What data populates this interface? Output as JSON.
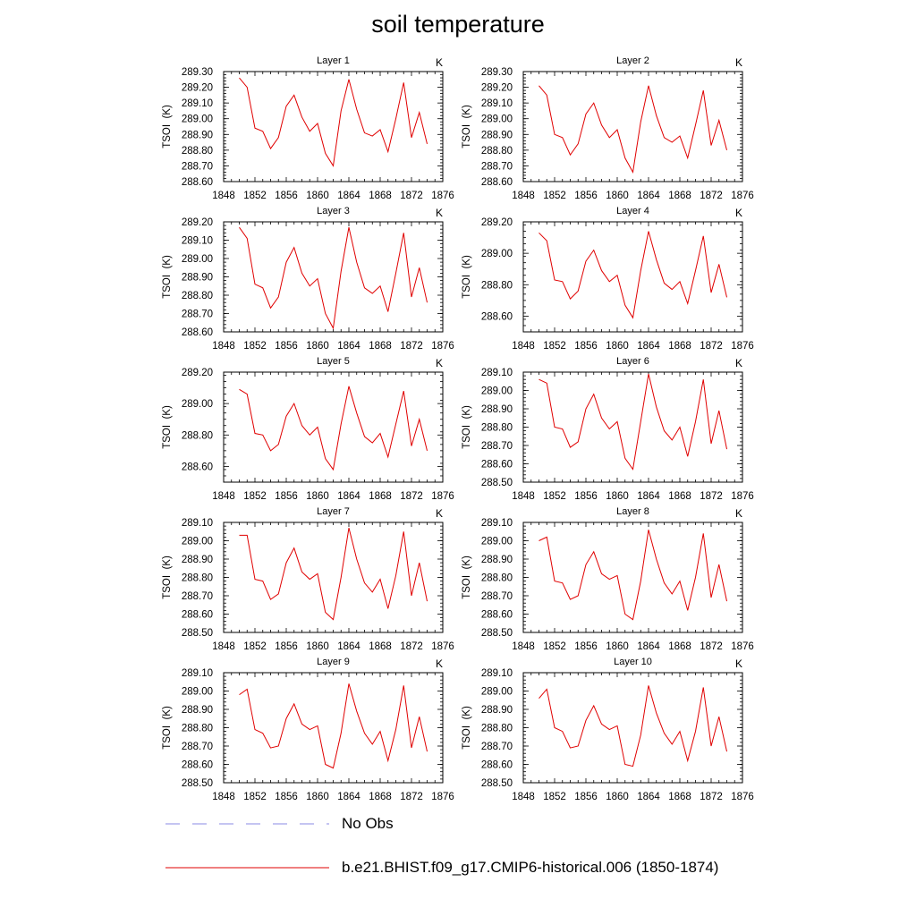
{
  "title": "soil temperature",
  "legend": [
    {
      "label": "No Obs",
      "color": "#8a8ae6",
      "dash": true
    },
    {
      "label": "b.e21.BHIST.f09_g17.CMIP6-historical.006 (1850-1874)",
      "color": "#e00000",
      "dash": false
    }
  ],
  "chart_data": [
    {
      "type": "line",
      "title": "Layer 1",
      "units": "K",
      "ylabel": "TSOI  (K)",
      "xlim": [
        1848,
        1876
      ],
      "ylim": [
        288.6,
        289.3
      ],
      "xticks": [
        "1848",
        "1852",
        "1856",
        "1860",
        "1864",
        "1868",
        "1872",
        "1876"
      ],
      "yticks": [
        "288.60",
        "288.70",
        "288.80",
        "288.90",
        "289.00",
        "289.10",
        "289.20",
        "289.30"
      ],
      "x": [
        1850,
        1851,
        1852,
        1853,
        1854,
        1855,
        1856,
        1857,
        1858,
        1859,
        1860,
        1861,
        1862,
        1863,
        1864,
        1865,
        1866,
        1867,
        1868,
        1869,
        1870,
        1871,
        1872,
        1873,
        1874
      ],
      "series": [
        {
          "values": [
            289.26,
            289.2,
            288.94,
            288.92,
            288.81,
            288.88,
            289.08,
            289.15,
            289.01,
            288.92,
            288.97,
            288.78,
            288.7,
            289.05,
            289.25,
            289.06,
            288.91,
            288.89,
            288.93,
            288.79,
            289.0,
            289.23,
            288.88,
            289.04,
            288.84
          ]
        }
      ]
    },
    {
      "type": "line",
      "title": "Layer 2",
      "units": "K",
      "ylabel": "TSOI  (K)",
      "xlim": [
        1848,
        1876
      ],
      "ylim": [
        288.6,
        289.3
      ],
      "xticks": [
        "1848",
        "1852",
        "1856",
        "1860",
        "1864",
        "1868",
        "1872",
        "1876"
      ],
      "yticks": [
        "288.60",
        "288.70",
        "288.80",
        "288.90",
        "289.00",
        "289.10",
        "289.20",
        "289.30"
      ],
      "x": [
        1850,
        1851,
        1852,
        1853,
        1854,
        1855,
        1856,
        1857,
        1858,
        1859,
        1860,
        1861,
        1862,
        1863,
        1864,
        1865,
        1866,
        1867,
        1868,
        1869,
        1870,
        1871,
        1872,
        1873,
        1874
      ],
      "series": [
        {
          "values": [
            289.21,
            289.15,
            288.9,
            288.88,
            288.77,
            288.84,
            289.03,
            289.1,
            288.96,
            288.88,
            288.93,
            288.75,
            288.66,
            288.98,
            289.21,
            289.02,
            288.88,
            288.85,
            288.89,
            288.75,
            288.96,
            289.18,
            288.83,
            288.99,
            288.8
          ]
        }
      ]
    },
    {
      "type": "line",
      "title": "Layer 3",
      "units": "K",
      "ylabel": "TSOI  (K)",
      "xlim": [
        1848,
        1876
      ],
      "ylim": [
        288.6,
        289.2
      ],
      "xticks": [
        "1848",
        "1852",
        "1856",
        "1860",
        "1864",
        "1868",
        "1872",
        "1876"
      ],
      "yticks": [
        "288.60",
        "288.70",
        "288.80",
        "288.90",
        "289.00",
        "289.10",
        "289.20"
      ],
      "x": [
        1850,
        1851,
        1852,
        1853,
        1854,
        1855,
        1856,
        1857,
        1858,
        1859,
        1860,
        1861,
        1862,
        1863,
        1864,
        1865,
        1866,
        1867,
        1868,
        1869,
        1870,
        1871,
        1872,
        1873,
        1874
      ],
      "series": [
        {
          "values": [
            289.17,
            289.11,
            288.86,
            288.84,
            288.73,
            288.79,
            288.98,
            289.06,
            288.92,
            288.85,
            288.89,
            288.7,
            288.62,
            288.93,
            289.17,
            288.98,
            288.84,
            288.81,
            288.85,
            288.71,
            288.92,
            289.14,
            288.79,
            288.95,
            288.76
          ]
        }
      ]
    },
    {
      "type": "line",
      "title": "Layer 4",
      "units": "K",
      "ylabel": "TSOI  (K)",
      "xlim": [
        1848,
        1876
      ],
      "ylim": [
        288.5,
        289.2
      ],
      "xticks": [
        "1848",
        "1852",
        "1856",
        "1860",
        "1864",
        "1868",
        "1872",
        "1876"
      ],
      "yticks": [
        "288.60",
        "288.80",
        "289.00",
        "289.20"
      ],
      "x": [
        1850,
        1851,
        1852,
        1853,
        1854,
        1855,
        1856,
        1857,
        1858,
        1859,
        1860,
        1861,
        1862,
        1863,
        1864,
        1865,
        1866,
        1867,
        1868,
        1869,
        1870,
        1871,
        1872,
        1873,
        1874
      ],
      "series": [
        {
          "values": [
            289.13,
            289.08,
            288.83,
            288.82,
            288.71,
            288.76,
            288.95,
            289.02,
            288.89,
            288.82,
            288.86,
            288.67,
            288.59,
            288.89,
            289.14,
            288.96,
            288.81,
            288.77,
            288.82,
            288.68,
            288.89,
            289.11,
            288.75,
            288.93,
            288.72
          ]
        }
      ]
    },
    {
      "type": "line",
      "title": "Layer 5",
      "units": "K",
      "ylabel": "TSOI  (K)",
      "xlim": [
        1848,
        1876
      ],
      "ylim": [
        288.5,
        289.2
      ],
      "xticks": [
        "1848",
        "1852",
        "1856",
        "1860",
        "1864",
        "1868",
        "1872",
        "1876"
      ],
      "yticks": [
        "288.60",
        "288.80",
        "289.00",
        "289.20"
      ],
      "x": [
        1850,
        1851,
        1852,
        1853,
        1854,
        1855,
        1856,
        1857,
        1858,
        1859,
        1860,
        1861,
        1862,
        1863,
        1864,
        1865,
        1866,
        1867,
        1868,
        1869,
        1870,
        1871,
        1872,
        1873,
        1874
      ],
      "series": [
        {
          "values": [
            289.09,
            289.06,
            288.81,
            288.8,
            288.7,
            288.74,
            288.92,
            289.0,
            288.86,
            288.8,
            288.85,
            288.65,
            288.58,
            288.87,
            289.11,
            288.94,
            288.79,
            288.75,
            288.81,
            288.66,
            288.87,
            289.08,
            288.73,
            288.9,
            288.7
          ]
        }
      ]
    },
    {
      "type": "line",
      "title": "Layer 6",
      "units": "K",
      "ylabel": "TSOI  (K)",
      "xlim": [
        1848,
        1876
      ],
      "ylim": [
        288.5,
        289.1
      ],
      "xticks": [
        "1848",
        "1852",
        "1856",
        "1860",
        "1864",
        "1868",
        "1872",
        "1876"
      ],
      "yticks": [
        "288.50",
        "288.60",
        "288.70",
        "288.80",
        "288.90",
        "289.00",
        "289.10"
      ],
      "x": [
        1850,
        1851,
        1852,
        1853,
        1854,
        1855,
        1856,
        1857,
        1858,
        1859,
        1860,
        1861,
        1862,
        1863,
        1864,
        1865,
        1866,
        1867,
        1868,
        1869,
        1870,
        1871,
        1872,
        1873,
        1874
      ],
      "series": [
        {
          "values": [
            289.06,
            289.04,
            288.8,
            288.79,
            288.69,
            288.72,
            288.9,
            288.98,
            288.85,
            288.79,
            288.83,
            288.63,
            288.57,
            288.83,
            289.09,
            288.91,
            288.78,
            288.73,
            288.8,
            288.64,
            288.83,
            289.06,
            288.71,
            288.89,
            288.68
          ]
        }
      ]
    },
    {
      "type": "line",
      "title": "Layer 7",
      "units": "K",
      "ylabel": "TSOI  (K)",
      "xlim": [
        1848,
        1876
      ],
      "ylim": [
        288.5,
        289.1
      ],
      "xticks": [
        "1848",
        "1852",
        "1856",
        "1860",
        "1864",
        "1868",
        "1872",
        "1876"
      ],
      "yticks": [
        "288.50",
        "288.60",
        "288.70",
        "288.80",
        "288.90",
        "289.00",
        "289.10"
      ],
      "x": [
        1850,
        1851,
        1852,
        1853,
        1854,
        1855,
        1856,
        1857,
        1858,
        1859,
        1860,
        1861,
        1862,
        1863,
        1864,
        1865,
        1866,
        1867,
        1868,
        1869,
        1870,
        1871,
        1872,
        1873,
        1874
      ],
      "series": [
        {
          "values": [
            289.03,
            289.03,
            288.79,
            288.78,
            288.68,
            288.71,
            288.88,
            288.96,
            288.83,
            288.79,
            288.82,
            288.61,
            288.57,
            288.8,
            289.07,
            288.9,
            288.77,
            288.72,
            288.79,
            288.63,
            288.81,
            289.05,
            288.7,
            288.88,
            288.67
          ]
        }
      ]
    },
    {
      "type": "line",
      "title": "Layer 8",
      "units": "K",
      "ylabel": "TSOI  (K)",
      "xlim": [
        1848,
        1876
      ],
      "ylim": [
        288.5,
        289.1
      ],
      "xticks": [
        "1848",
        "1852",
        "1856",
        "1860",
        "1864",
        "1868",
        "1872",
        "1876"
      ],
      "yticks": [
        "288.50",
        "288.60",
        "288.70",
        "288.80",
        "288.90",
        "289.00",
        "289.10"
      ],
      "x": [
        1850,
        1851,
        1852,
        1853,
        1854,
        1855,
        1856,
        1857,
        1858,
        1859,
        1860,
        1861,
        1862,
        1863,
        1864,
        1865,
        1866,
        1867,
        1868,
        1869,
        1870,
        1871,
        1872,
        1873,
        1874
      ],
      "series": [
        {
          "values": [
            289.0,
            289.02,
            288.78,
            288.77,
            288.68,
            288.7,
            288.87,
            288.94,
            288.82,
            288.79,
            288.81,
            288.6,
            288.57,
            288.78,
            289.06,
            288.9,
            288.77,
            288.71,
            288.78,
            288.62,
            288.8,
            289.04,
            288.69,
            288.87,
            288.67
          ]
        }
      ]
    },
    {
      "type": "line",
      "title": "Layer 9",
      "units": "K",
      "ylabel": "TSOI  (K)",
      "xlim": [
        1848,
        1876
      ],
      "ylim": [
        288.5,
        289.1
      ],
      "xticks": [
        "1848",
        "1852",
        "1856",
        "1860",
        "1864",
        "1868",
        "1872",
        "1876"
      ],
      "yticks": [
        "288.50",
        "288.60",
        "288.70",
        "288.80",
        "288.90",
        "289.00",
        "289.10"
      ],
      "x": [
        1850,
        1851,
        1852,
        1853,
        1854,
        1855,
        1856,
        1857,
        1858,
        1859,
        1860,
        1861,
        1862,
        1863,
        1864,
        1865,
        1866,
        1867,
        1868,
        1869,
        1870,
        1871,
        1872,
        1873,
        1874
      ],
      "series": [
        {
          "values": [
            288.98,
            289.01,
            288.79,
            288.77,
            288.69,
            288.7,
            288.85,
            288.93,
            288.82,
            288.79,
            288.81,
            288.6,
            288.58,
            288.77,
            289.04,
            288.89,
            288.77,
            288.71,
            288.78,
            288.62,
            288.79,
            289.03,
            288.69,
            288.86,
            288.67
          ]
        }
      ]
    },
    {
      "type": "line",
      "title": "Layer 10",
      "units": "K",
      "ylabel": "TSOI  (K)",
      "xlim": [
        1848,
        1876
      ],
      "ylim": [
        288.5,
        289.1
      ],
      "xticks": [
        "1848",
        "1852",
        "1856",
        "1860",
        "1864",
        "1868",
        "1872",
        "1876"
      ],
      "yticks": [
        "288.50",
        "288.60",
        "288.70",
        "288.80",
        "288.90",
        "289.00",
        "289.10"
      ],
      "x": [
        1850,
        1851,
        1852,
        1853,
        1854,
        1855,
        1856,
        1857,
        1858,
        1859,
        1860,
        1861,
        1862,
        1863,
        1864,
        1865,
        1866,
        1867,
        1868,
        1869,
        1870,
        1871,
        1872,
        1873,
        1874
      ],
      "series": [
        {
          "values": [
            288.96,
            289.01,
            288.8,
            288.78,
            288.69,
            288.7,
            288.84,
            288.92,
            288.82,
            288.79,
            288.81,
            288.6,
            288.59,
            288.76,
            289.03,
            288.88,
            288.77,
            288.71,
            288.78,
            288.62,
            288.78,
            289.02,
            288.7,
            288.86,
            288.67
          ]
        }
      ]
    }
  ]
}
